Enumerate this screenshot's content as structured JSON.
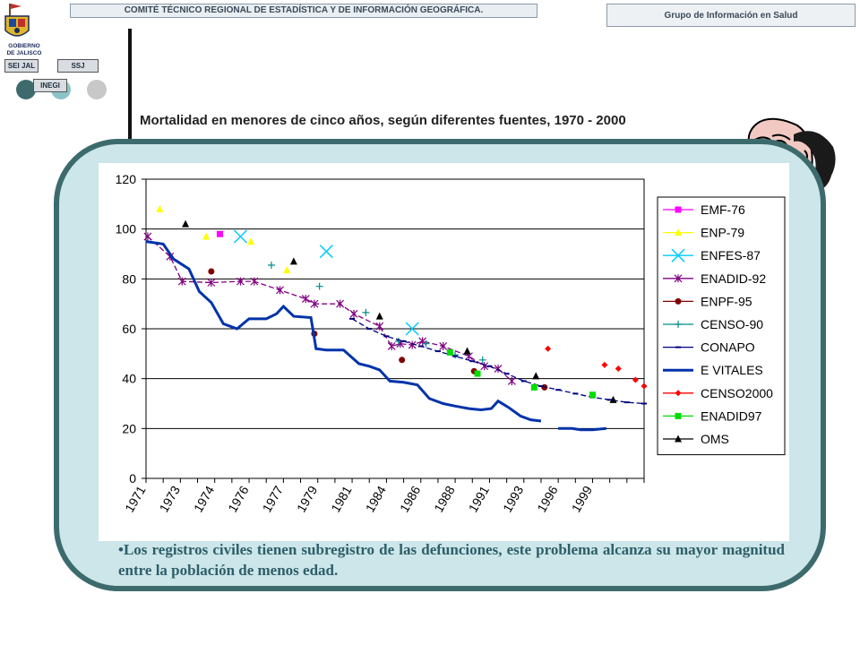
{
  "header": {
    "committee": "COMITÉ TÉCNICO REGIONAL DE ESTADÍSTICA Y DE INFORMACIÓN GEOGRÁFICA.",
    "group": "Grupo de Información en Salud"
  },
  "logo": {
    "text_line1": "GOBIERNO",
    "text_line2": "DE JALISCO",
    "tags": [
      "SEI JAL",
      "SSJ",
      "INEGI"
    ]
  },
  "page_title": "Mortalidad en menores de cinco años, según diferentes fuentes, 1970 - 2000",
  "caption": {
    "bullet": "•",
    "text": "Los registros civiles tienen subregistro de las defunciones, este problema alcanza su mayor magnitud entre la población de menos edad."
  },
  "chart_data": {
    "type": "line",
    "title": "",
    "xlabel": "",
    "ylabel": "",
    "xlim": [
      1971,
      2000
    ],
    "ylim": [
      0,
      120
    ],
    "yticks": [
      0,
      20,
      40,
      60,
      80,
      100,
      120
    ],
    "xtick_labels": [
      {
        "x": 1971,
        "label": "1971"
      },
      {
        "x": 1973,
        "label": "1973"
      },
      {
        "x": 1975,
        "label": "1974"
      },
      {
        "x": 1977,
        "label": "1976"
      },
      {
        "x": 1979,
        "label": "1977"
      },
      {
        "x": 1981,
        "label": "1979"
      },
      {
        "x": 1983,
        "label": "1981"
      },
      {
        "x": 1985,
        "label": "1984"
      },
      {
        "x": 1987,
        "label": "1986"
      },
      {
        "x": 1989,
        "label": "1988"
      },
      {
        "x": 1991,
        "label": "1991"
      },
      {
        "x": 1993,
        "label": "1993"
      },
      {
        "x": 1995,
        "label": "1996"
      },
      {
        "x": 1997,
        "label": "1999"
      }
    ],
    "grid": "horizontal",
    "legend_position": "right",
    "series": [
      {
        "name": "EMF-76",
        "marker": "square",
        "color": "#ff00ff",
        "line": false,
        "points": [
          [
            1975.3,
            98
          ]
        ]
      },
      {
        "name": "ENP-79",
        "marker": "triangle",
        "color": "#ffff00",
        "line": false,
        "points": [
          [
            1971.8,
            108
          ],
          [
            1974.5,
            97
          ],
          [
            1977.1,
            95
          ],
          [
            1979.2,
            83.5
          ]
        ]
      },
      {
        "name": "ENFES-87",
        "marker": "x",
        "color": "#00ccff",
        "line": false,
        "points": [
          [
            1976.5,
            97
          ],
          [
            1981.5,
            91
          ],
          [
            1986.5,
            60
          ]
        ]
      },
      {
        "name": "ENADID-92",
        "marker": "asterisk",
        "color": "#800080",
        "line": true,
        "dashed": true,
        "points": [
          [
            1971.1,
            97
          ],
          [
            1972.4,
            89
          ],
          [
            1973.1,
            79
          ],
          [
            1974.8,
            78.5
          ],
          [
            1976.5,
            79
          ],
          [
            1977.3,
            79
          ],
          [
            1978.8,
            75.5
          ],
          [
            1980.3,
            72
          ],
          [
            1980.8,
            70
          ],
          [
            1982.3,
            70
          ],
          [
            1983.1,
            66
          ],
          [
            1984.6,
            61
          ],
          [
            1985.3,
            53
          ],
          [
            1985.8,
            54
          ],
          [
            1986.5,
            53.5
          ],
          [
            1987.1,
            55
          ],
          [
            1988.3,
            53
          ],
          [
            1989.8,
            49
          ],
          [
            1990.7,
            45
          ],
          [
            1991.5,
            44
          ],
          [
            1992.3,
            39
          ]
        ]
      },
      {
        "name": "ENPF-95",
        "marker": "circle",
        "color": "#800000",
        "line": false,
        "points": [
          [
            1974.8,
            83
          ],
          [
            1980.8,
            58
          ],
          [
            1985.9,
            47.5
          ],
          [
            1990.1,
            43
          ],
          [
            1994.2,
            36.5
          ]
        ]
      },
      {
        "name": "CENSO-90",
        "marker": "plus",
        "color": "#008b8b",
        "line": false,
        "points": [
          [
            1978.3,
            85.5
          ],
          [
            1981.1,
            77
          ],
          [
            1983.8,
            66.5
          ],
          [
            1985.7,
            55
          ],
          [
            1987.3,
            54
          ],
          [
            1989.0,
            49.5
          ],
          [
            1990.6,
            47.5
          ]
        ]
      },
      {
        "name": "CONAPO",
        "marker": "dash",
        "color": "#000080",
        "line": true,
        "dashed": true,
        "points": [
          [
            1983.0,
            64
          ],
          [
            1984.0,
            60
          ],
          [
            1985.0,
            57
          ],
          [
            1986.0,
            55
          ],
          [
            1987.0,
            53
          ],
          [
            1988.0,
            51
          ],
          [
            1989.0,
            49
          ],
          [
            1990.0,
            47
          ],
          [
            1991.0,
            45
          ],
          [
            1992.0,
            42
          ],
          [
            1993.0,
            39
          ],
          [
            1994.0,
            37
          ],
          [
            1995.0,
            35.5
          ],
          [
            1996.0,
            34
          ],
          [
            1997.0,
            32.5
          ],
          [
            1998.0,
            31.5
          ],
          [
            1999.0,
            30.5
          ],
          [
            2000.0,
            30
          ]
        ]
      },
      {
        "name": "E VITALES",
        "marker": "dash",
        "color": "#0033aa",
        "line": true,
        "thick": true,
        "points": [
          [
            1971.0,
            95
          ],
          [
            1972.0,
            94
          ],
          [
            1972.6,
            88
          ],
          [
            1973.5,
            84
          ],
          [
            1974.1,
            75
          ],
          [
            1974.8,
            70.5
          ],
          [
            1975.5,
            62
          ],
          [
            1976.3,
            60
          ],
          [
            1977.0,
            64
          ],
          [
            1978.0,
            64
          ],
          [
            1978.6,
            66
          ],
          [
            1979.0,
            69
          ],
          [
            1979.6,
            65
          ],
          [
            1980.6,
            64.5
          ],
          [
            1980.9,
            52
          ],
          [
            1981.5,
            51.5
          ],
          [
            1982.5,
            51.5
          ],
          [
            1983.4,
            46
          ],
          [
            1984.0,
            45
          ],
          [
            1984.6,
            43.5
          ],
          [
            1985.2,
            39
          ],
          [
            1986.0,
            38.5
          ],
          [
            1986.8,
            37.5
          ],
          [
            1987.5,
            32
          ],
          [
            1988.3,
            30
          ],
          [
            1989.0,
            29
          ],
          [
            1989.8,
            28
          ],
          [
            1990.5,
            27.5
          ],
          [
            1991.1,
            28
          ],
          [
            1991.5,
            31
          ],
          [
            1992.1,
            28.5
          ],
          [
            1992.8,
            25
          ],
          [
            1993.4,
            23.5
          ],
          [
            1994.0,
            23
          ]
        ]
      },
      {
        "name": "CENSO2000",
        "marker": "diamond",
        "color": "#ff0000",
        "line": false,
        "points": [
          [
            1994.4,
            52
          ],
          [
            1997.7,
            45.5
          ],
          [
            1998.5,
            44
          ],
          [
            1999.5,
            39.5
          ],
          [
            2000.0,
            37
          ]
        ]
      },
      {
        "name": "ENADID97",
        "marker": "square",
        "color": "#00dd00",
        "line": false,
        "points": [
          [
            1988.7,
            50.5
          ],
          [
            1990.3,
            42
          ],
          [
            1993.6,
            36.5
          ],
          [
            1997.0,
            33.5
          ]
        ]
      },
      {
        "name": "OMS",
        "marker": "triangle",
        "color": "#000000",
        "line": false,
        "points": [
          [
            1973.3,
            102
          ],
          [
            1979.6,
            87
          ],
          [
            1984.6,
            65
          ],
          [
            1989.7,
            51
          ],
          [
            1993.7,
            41
          ],
          [
            1998.2,
            31.5
          ]
        ]
      }
    ],
    "extra_segments": [
      {
        "color": "#0033aa",
        "thick": true,
        "points": [
          [
            1995.0,
            20
          ],
          [
            1995.8,
            20
          ],
          [
            1996.3,
            19.5
          ],
          [
            1997.0,
            19.5
          ],
          [
            1997.8,
            20
          ]
        ]
      }
    ]
  }
}
